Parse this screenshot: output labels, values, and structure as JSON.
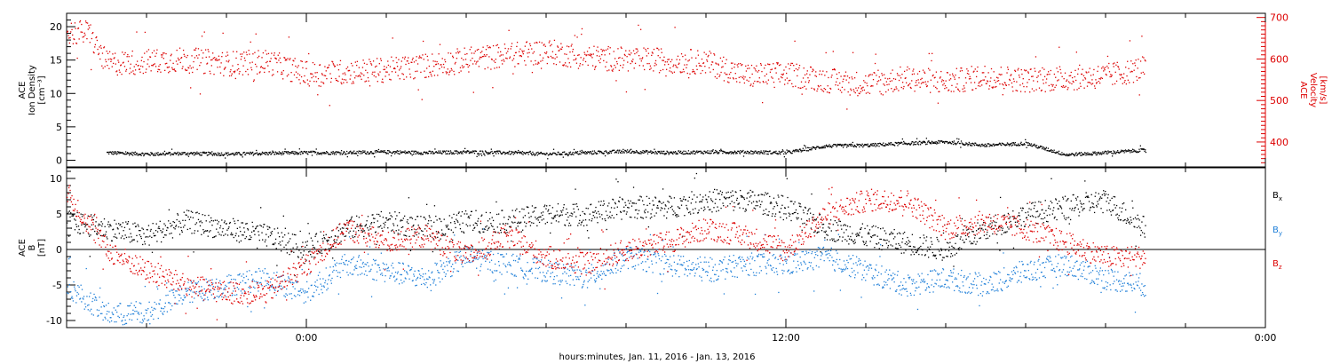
{
  "chart_data": [
    {
      "type": "scatter",
      "panel": "plasma",
      "left_axis": {
        "label_lines": [
          "ACE",
          "Ion Density",
          "[cm⁻³]"
        ],
        "ylim": [
          -1,
          22
        ],
        "ticks": [
          0,
          5,
          10,
          15,
          20
        ],
        "tick_labels": [
          "0",
          "5",
          "10",
          "15",
          "20"
        ],
        "color": "#000000"
      },
      "right_axis": {
        "label_lines": [
          "ACE",
          "Velocity",
          "[km/s]"
        ],
        "ylim": [
          340,
          710
        ],
        "ticks": [
          400,
          500,
          600,
          700
        ],
        "tick_labels": [
          "400",
          "500",
          "600",
          "700"
        ],
        "color": "#dd0000"
      },
      "series": [
        {
          "axis": "left",
          "color": "#000000",
          "x": [
            -10,
            -8,
            -6,
            -4,
            -2,
            0,
            2,
            4,
            6,
            8,
            10,
            12,
            14,
            16,
            18,
            20,
            22,
            24,
            26,
            28,
            30,
            32,
            34,
            36,
            38,
            40,
            42
          ],
          "y": [
            1.2,
            1.0,
            1.1,
            1.0,
            1.1,
            1.2,
            1.2,
            1.3,
            1.2,
            1.3,
            1.2,
            1.0,
            1.2,
            1.4,
            1.2,
            1.3,
            1.3,
            1.2,
            2.2,
            2.3,
            2.6,
            2.8,
            2.3,
            2.6,
            0.9,
            1.2,
            1.6
          ]
        },
        {
          "axis": "right",
          "color": "#dd0000",
          "x": [
            -12,
            -11,
            -10,
            -8,
            -6,
            -4,
            -2,
            0,
            2,
            4,
            6,
            8,
            10,
            12,
            14,
            16,
            18,
            20,
            22,
            24,
            26,
            28,
            30,
            32,
            34,
            36,
            38,
            40,
            42
          ],
          "y": [
            665,
            665,
            590,
            595,
            600,
            590,
            595,
            565,
            570,
            575,
            585,
            600,
            610,
            620,
            605,
            600,
            598,
            593,
            560,
            565,
            550,
            540,
            555,
            545,
            560,
            550,
            555,
            560,
            580
          ]
        }
      ]
    },
    {
      "type": "scatter",
      "panel": "magnetic-field",
      "left_axis": {
        "label_lines": [
          "ACE",
          "B",
          "[nT]"
        ],
        "ylim": [
          -11,
          11.5
        ],
        "ticks": [
          -10,
          -5,
          0,
          5,
          10
        ],
        "tick_labels": [
          "-10",
          "-5",
          "0",
          "5",
          "10"
        ],
        "color": "#000000"
      },
      "zero_line": true,
      "legend": [
        "Bx",
        "By",
        "Bz"
      ],
      "series": [
        {
          "name": "Bx",
          "color": "#000000",
          "x": [
            -12,
            -10,
            -8,
            -6,
            -4,
            -2,
            0,
            2,
            4,
            6,
            8,
            10,
            12,
            14,
            16,
            18,
            20,
            22,
            24,
            26,
            28,
            30,
            32,
            34,
            36,
            38,
            40,
            42
          ],
          "y": [
            4,
            3,
            2,
            4,
            3,
            2,
            0,
            3,
            4,
            3,
            4,
            4,
            5,
            5,
            6,
            6,
            7,
            7,
            6,
            3,
            2,
            1,
            0,
            3,
            5,
            6,
            7,
            3
          ]
        },
        {
          "name": "By",
          "color": "#1f7fd8",
          "x": [
            -12,
            -10,
            -8,
            -6,
            -4,
            -2,
            0,
            2,
            4,
            6,
            8,
            10,
            12,
            14,
            16,
            18,
            20,
            22,
            24,
            26,
            28,
            30,
            32,
            34,
            36,
            38,
            40,
            42
          ],
          "y": [
            -5,
            -9,
            -9,
            -6,
            -5,
            -4,
            -6,
            -2,
            -3,
            -4,
            -1,
            -2,
            -3,
            -4,
            -1,
            -2,
            -3,
            -2,
            -2,
            -1,
            -3,
            -5,
            -4,
            -5,
            -3,
            -2,
            -4,
            -5
          ]
        },
        {
          "name": "Bz",
          "color": "#dd0000",
          "x": [
            -12,
            -10,
            -8,
            -6,
            -4,
            -2,
            0,
            2,
            4,
            6,
            8,
            10,
            12,
            14,
            16,
            18,
            20,
            22,
            24,
            26,
            28,
            30,
            32,
            34,
            36,
            38,
            40,
            42
          ],
          "y": [
            8,
            0,
            -3,
            -5,
            -6,
            -6,
            -2,
            3,
            1,
            2,
            -1,
            2,
            -1,
            -2,
            0,
            1,
            3,
            2,
            0,
            5,
            7,
            7,
            3,
            4,
            3,
            1,
            -1,
            -1
          ]
        }
      ]
    }
  ],
  "time_axis": {
    "xlim": [
      -12,
      48
    ],
    "major_ticks": [
      0,
      24,
      48
    ],
    "tick_labels": [
      "0:00",
      "12:00",
      "0:00"
    ],
    "xlabel": "hours:minutes, Jan. 11, 2016 - Jan. 13, 2016"
  },
  "legend_labels": {
    "bx_main": "B",
    "bx_sub": "x",
    "by_main": "B",
    "by_sub": "y",
    "bz_main": "B",
    "bz_sub": "z"
  }
}
